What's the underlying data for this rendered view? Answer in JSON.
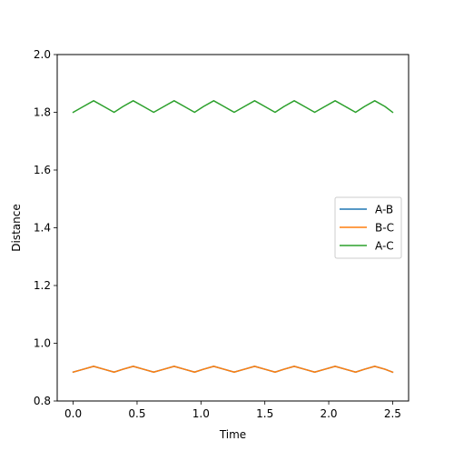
{
  "chart_data": {
    "type": "line",
    "xlabel": "Time",
    "ylabel": "Distance",
    "xlim": [
      -0.125,
      2.625
    ],
    "ylim": [
      0.8,
      2.0
    ],
    "xticks": [
      0.0,
      0.5,
      1.0,
      1.5,
      2.0,
      2.5
    ],
    "xtick_labels": [
      "0.0",
      "0.5",
      "1.0",
      "1.5",
      "2.0",
      "2.5"
    ],
    "yticks": [
      0.8,
      1.0,
      1.2,
      1.4,
      1.6,
      1.8,
      2.0
    ],
    "ytick_labels": [
      "0.8",
      "1.0",
      "1.2",
      "1.4",
      "1.6",
      "1.8",
      "2.0"
    ],
    "grid": false,
    "legend_position": "center-right",
    "x": [
      0.0,
      0.08,
      0.16,
      0.24,
      0.32,
      0.39,
      0.47,
      0.55,
      0.63,
      0.71,
      0.79,
      0.87,
      0.95,
      1.02,
      1.1,
      1.18,
      1.26,
      1.34,
      1.42,
      1.5,
      1.58,
      1.65,
      1.73,
      1.81,
      1.89,
      1.97,
      2.05,
      2.13,
      2.21,
      2.28,
      2.36,
      2.44,
      2.5
    ],
    "series": [
      {
        "name": "A-B",
        "color": "#1f77b4",
        "values": [
          0.9,
          0.91,
          0.92,
          0.91,
          0.9,
          0.91,
          0.92,
          0.91,
          0.9,
          0.91,
          0.92,
          0.91,
          0.9,
          0.91,
          0.92,
          0.91,
          0.9,
          0.91,
          0.92,
          0.91,
          0.9,
          0.91,
          0.92,
          0.91,
          0.9,
          0.91,
          0.92,
          0.91,
          0.9,
          0.91,
          0.92,
          0.91,
          0.9
        ]
      },
      {
        "name": "B-C",
        "color": "#ff7f0e",
        "values": [
          0.9,
          0.91,
          0.92,
          0.91,
          0.9,
          0.91,
          0.92,
          0.91,
          0.9,
          0.91,
          0.92,
          0.91,
          0.9,
          0.91,
          0.92,
          0.91,
          0.9,
          0.91,
          0.92,
          0.91,
          0.9,
          0.91,
          0.92,
          0.91,
          0.9,
          0.91,
          0.92,
          0.91,
          0.9,
          0.91,
          0.92,
          0.91,
          0.9
        ]
      },
      {
        "name": "A-C",
        "color": "#2ca02c",
        "values": [
          1.8,
          1.82,
          1.84,
          1.82,
          1.8,
          1.82,
          1.84,
          1.82,
          1.8,
          1.82,
          1.84,
          1.82,
          1.8,
          1.82,
          1.84,
          1.82,
          1.8,
          1.82,
          1.84,
          1.82,
          1.8,
          1.82,
          1.84,
          1.82,
          1.8,
          1.82,
          1.84,
          1.82,
          1.8,
          1.82,
          1.84,
          1.82,
          1.8
        ]
      }
    ]
  }
}
